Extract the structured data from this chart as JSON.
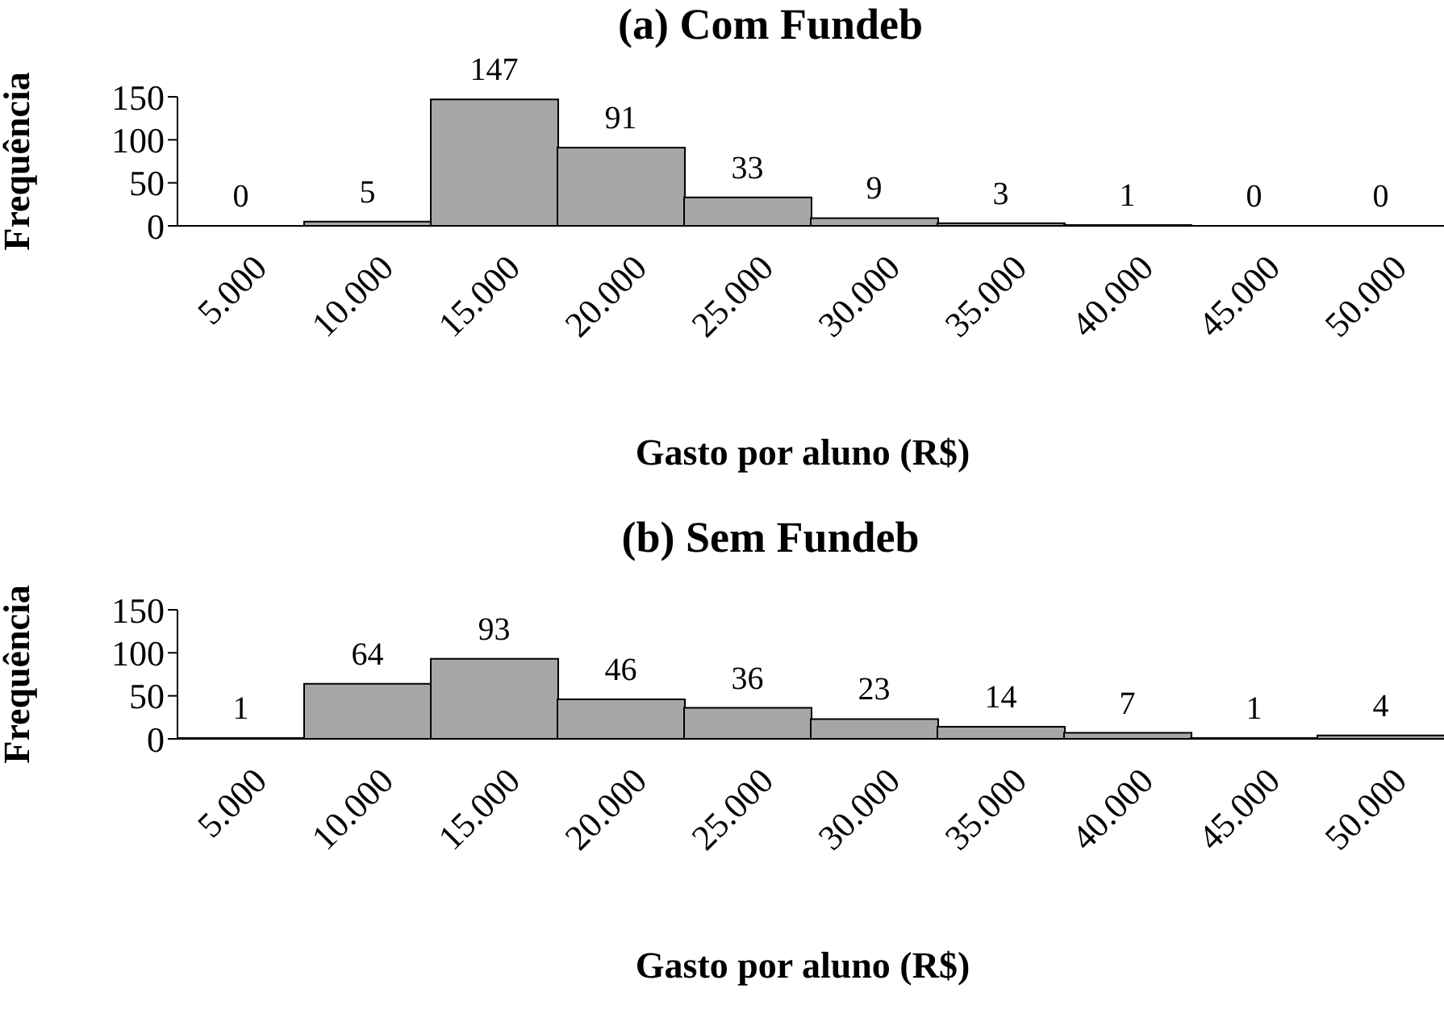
{
  "chart_data": [
    {
      "type": "bar",
      "title": "(a) Com Fundeb",
      "xlabel": "Gasto por aluno (R$)",
      "ylabel": "Frequência",
      "categories": [
        "5.000",
        "10.000",
        "15.000",
        "20.000",
        "25.000",
        "30.000",
        "35.000",
        "40.000",
        "45.000",
        "50.000"
      ],
      "values": [
        0,
        5,
        147,
        91,
        33,
        9,
        3,
        1,
        0,
        0
      ],
      "color": "#a6a6a6",
      "data_labels": true,
      "ylim": [
        0,
        150
      ],
      "yticks": [
        0,
        50,
        100,
        150
      ],
      "grid": false
    },
    {
      "type": "bar",
      "title": "(b) Sem Fundeb",
      "xlabel": "Gasto por aluno (R$)",
      "ylabel": "Frequência",
      "categories": [
        "5.000",
        "10.000",
        "15.000",
        "20.000",
        "25.000",
        "30.000",
        "35.000",
        "40.000",
        "45.000",
        "50.000"
      ],
      "values": [
        1,
        64,
        93,
        46,
        36,
        23,
        14,
        7,
        1,
        4
      ],
      "color": "#a6a6a6",
      "data_labels": true,
      "ylim": [
        0,
        150
      ],
      "yticks": [
        0,
        50,
        100,
        150
      ],
      "grid": false
    }
  ]
}
